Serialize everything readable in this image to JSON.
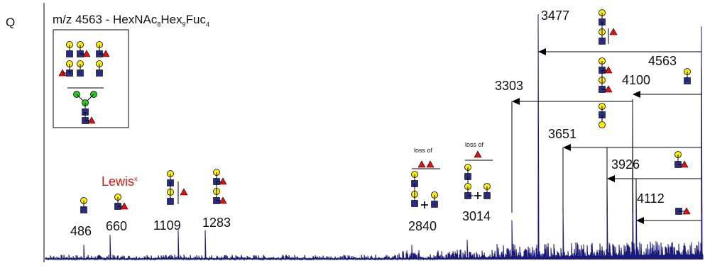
{
  "panel_letter": "Q",
  "title": {
    "prefix": "m/z 4563 - HexNAc",
    "sub1": "8",
    "mid1": "Hex",
    "sub2": "9",
    "mid2": "Fuc",
    "sub3": "4"
  },
  "lewis_label": {
    "text": "Lewis",
    "sup": "x"
  },
  "loss_of_text": "loss of",
  "colors": {
    "trace": "#1a1a7a",
    "hexnac": "#2a2a80",
    "galactose": "#ffee00",
    "mannose": "#22cc22",
    "fucose": "#e01010",
    "annotation_red": "#e01010"
  },
  "chart_data": {
    "type": "line",
    "title": "m/z 4563 - HexNAc8Hex9Fuc4",
    "xlabel": "",
    "ylabel": "",
    "grid": false,
    "peaks": [
      {
        "label": "486",
        "relative_intensity": 0.06
      },
      {
        "label": "660",
        "relative_intensity": 0.1
      },
      {
        "label": "1109",
        "relative_intensity": 0.12
      },
      {
        "label": "1283",
        "relative_intensity": 0.12
      },
      {
        "label": "2840",
        "relative_intensity": 0.06
      },
      {
        "label": "3014",
        "relative_intensity": 0.08
      },
      {
        "label": "3303",
        "relative_intensity": 0.16
      },
      {
        "label": "3477",
        "relative_intensity": 1.0
      },
      {
        "label": "3651",
        "relative_intensity": 0.22
      },
      {
        "label": "3926",
        "relative_intensity": 0.33
      },
      {
        "label": "4100",
        "relative_intensity": 0.59
      },
      {
        "label": "4112",
        "relative_intensity": 0.3
      },
      {
        "label": "4563",
        "relative_intensity": 0.95
      }
    ]
  }
}
